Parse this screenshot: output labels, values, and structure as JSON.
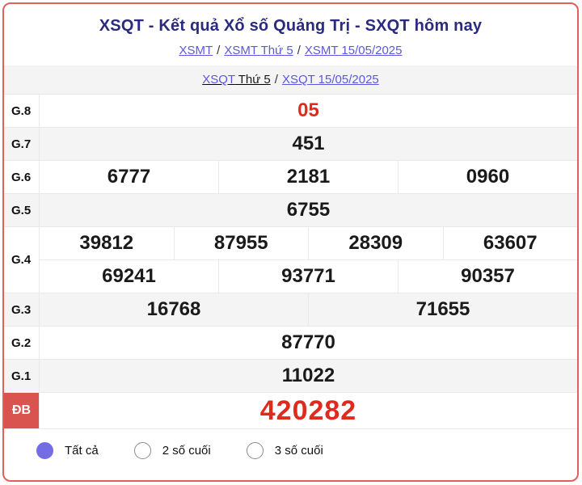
{
  "header": {
    "title": "XSQT - Kết quả Xổ số Quảng Trị - SXQT hôm nay",
    "separator": "/",
    "breadcrumb_xsmt": [
      "XSMT",
      "XSMT Thứ 5",
      "XSMT 15/05/2025"
    ],
    "breadcrumb_xsqt": {
      "link_region": "XSQT",
      "day_suffix": " Thứ 5",
      "link_date": "XSQT 15/05/2025"
    }
  },
  "results": {
    "rows": [
      {
        "id": "g8",
        "label": "G.8",
        "lines": [
          [
            "05"
          ]
        ],
        "highlight": true
      },
      {
        "id": "g7",
        "label": "G.7",
        "lines": [
          [
            "451"
          ]
        ]
      },
      {
        "id": "g6",
        "label": "G.6",
        "lines": [
          [
            "6777",
            "2181",
            "0960"
          ]
        ]
      },
      {
        "id": "g5",
        "label": "G.5",
        "lines": [
          [
            "6755"
          ]
        ]
      },
      {
        "id": "g4",
        "label": "G.4",
        "lines": [
          [
            "39812",
            "87955",
            "28309",
            "63607"
          ],
          [
            "69241",
            "93771",
            "90357"
          ]
        ]
      },
      {
        "id": "g3",
        "label": "G.3",
        "lines": [
          [
            "16768",
            "71655"
          ]
        ]
      },
      {
        "id": "g2",
        "label": "G.2",
        "lines": [
          [
            "87770"
          ]
        ]
      },
      {
        "id": "g1",
        "label": "G.1",
        "lines": [
          [
            "11022"
          ]
        ]
      },
      {
        "id": "db",
        "label": "ĐB",
        "lines": [
          [
            "420282"
          ]
        ],
        "highlight": true,
        "special": true
      }
    ]
  },
  "filters": {
    "options": [
      {
        "label": "Tất cả",
        "selected": true
      },
      {
        "label": "2 số cuối",
        "selected": false
      },
      {
        "label": "3 số cuối",
        "selected": false
      }
    ]
  },
  "colors": {
    "card_border": "#e0605c",
    "title": "#2a2a7e",
    "link": "#5b58de",
    "highlight_red": "#df2b1e",
    "special_label_bg": "#d9534f",
    "radio_selected": "#736ce2",
    "row_shade": "#f4f4f5"
  }
}
